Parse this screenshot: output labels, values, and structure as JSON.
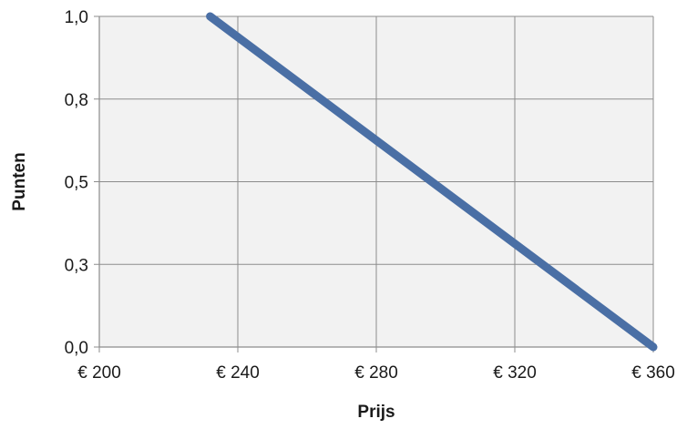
{
  "chart_data": {
    "type": "line",
    "title": "",
    "xlabel": "Prijs",
    "ylabel": "Punten",
    "xlim": [
      200,
      360
    ],
    "ylim": [
      0,
      1
    ],
    "x_ticks": [
      {
        "value": 200,
        "label": "€ 200"
      },
      {
        "value": 240,
        "label": "€ 240"
      },
      {
        "value": 280,
        "label": "€ 280"
      },
      {
        "value": 320,
        "label": "€ 320"
      },
      {
        "value": 360,
        "label": "€ 360"
      }
    ],
    "y_ticks": [
      {
        "value": 0,
        "label": "0,0"
      },
      {
        "value": 0.25,
        "label": "0,3"
      },
      {
        "value": 0.5,
        "label": "0,5"
      },
      {
        "value": 0.75,
        "label": "0,8"
      },
      {
        "value": 1,
        "label": "1,0"
      }
    ],
    "grid": true,
    "legend": "none",
    "series": [
      {
        "color": "#4a6fa5",
        "points": [
          {
            "x": 232,
            "y": 1.0
          },
          {
            "x": 360,
            "y": 0.0
          }
        ]
      }
    ],
    "colors": {
      "plot_background": "#f2f2f2",
      "gridline": "#8c8c8c",
      "axis": "#8c8c8c"
    }
  }
}
